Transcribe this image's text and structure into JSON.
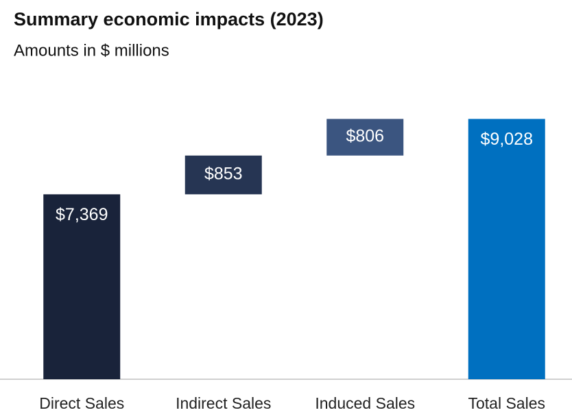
{
  "chart_data": {
    "type": "waterfall",
    "title": "Summary economic impacts (2023)",
    "subtitle": "Amounts in $ millions",
    "categories": [
      "Direct Sales",
      "Indirect Sales",
      "Induced Sales",
      "Total Sales"
    ],
    "values": [
      7369,
      853,
      806,
      9028
    ],
    "value_labels": [
      "$7,369",
      "$853",
      "$806",
      "$9,028"
    ],
    "is_total": [
      false,
      false,
      false,
      true
    ],
    "colors": [
      "#19233a",
      "#263553",
      "#3b5580",
      "#0070c0"
    ],
    "ylim": [
      3300,
      10000
    ]
  }
}
